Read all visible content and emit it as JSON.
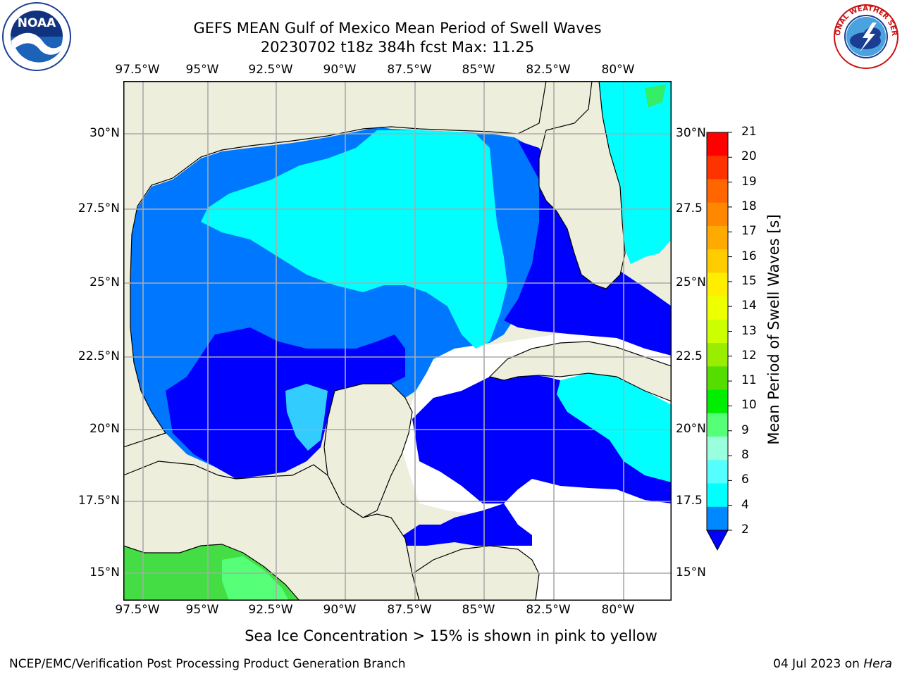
{
  "title": {
    "line1": "GEFS MEAN Gulf of Mexico Mean Period of Swell Waves",
    "line2": "20230702 t18z 384h fcst   Max: 11.25"
  },
  "logos": {
    "left": {
      "name": "NOAA",
      "text": "NOAA",
      "ring_text": "NATIONAL OCEANIC AND ATMOSPHERIC ADMINISTRATION · U.S. DEPARTMENT OF COMMERCE"
    },
    "right": {
      "name": "National Weather Service",
      "ring_text": "NATIONAL WEATHER SERVICE"
    }
  },
  "map": {
    "lon_labels": [
      "97.5°W",
      "95°W",
      "92.5°W",
      "90°W",
      "87.5°W",
      "85°W",
      "82.5°W",
      "80°W"
    ],
    "lat_labels": [
      "30°N",
      "27.5°N",
      "25°N",
      "22.5°N",
      "20°N",
      "17.5°N",
      "15°N"
    ],
    "lat_labels_right": [
      "30°N",
      "27.5",
      "25°N",
      "22.5",
      "20°N",
      "17.5",
      "15°N"
    ],
    "land_color": "#eeeedd",
    "grid": true,
    "extent": {
      "lon": [
        -98,
        -78.3
      ],
      "lat": [
        14,
        31.8
      ]
    }
  },
  "colorbar": {
    "label": "Mean Period of Swell Waves [s]",
    "ticks": [
      "21",
      "20",
      "19",
      "18",
      "17",
      "16",
      "15",
      "14",
      "13",
      "12",
      "11",
      "10",
      "9",
      "8",
      "6",
      "4",
      "2"
    ],
    "colors": [
      "#ff0000",
      "#ff3300",
      "#ff6600",
      "#ff8800",
      "#ffaa00",
      "#ffcc00",
      "#ffee00",
      "#eeff00",
      "#ccff00",
      "#99ee00",
      "#55dd00",
      "#00ee00",
      "#55ff77",
      "#99ffdd",
      "#55ffff",
      "#00ffff",
      "#0088ff",
      "#0000ff"
    ]
  },
  "footnote": "Sea Ice Concentration > 15% is shown in pink to yellow",
  "credit": "NCEP/EMC/Verification Post Processing Product Generation Branch",
  "datestamp": {
    "date": "04 Jul 2023 on",
    "machine": "Hera"
  }
}
